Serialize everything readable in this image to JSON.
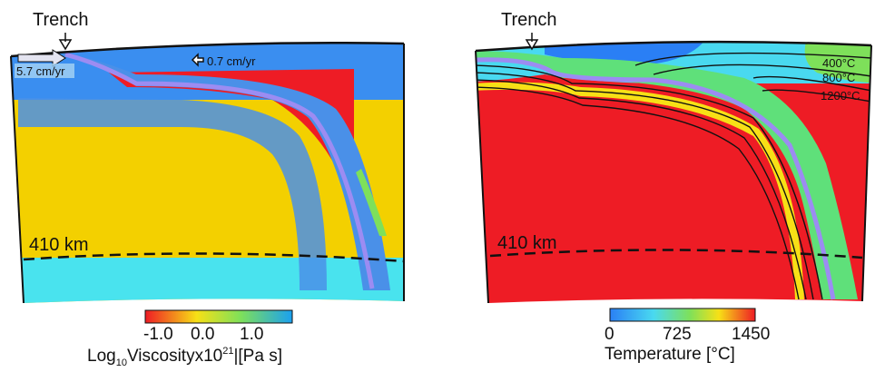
{
  "left_panel": {
    "trench_label": "Trench",
    "left_velocity": "5.7 cm/yr",
    "right_velocity": "0.7 cm/yr",
    "depth_label": "410 km",
    "colorbar": {
      "ticks": [
        "-1.0",
        "0.0",
        "1.0"
      ],
      "label_prefix": "Log",
      "label_sub": "10",
      "label_mid": "Viscosityx10",
      "label_sup": "21",
      "label_suffix": "|[Pa s]",
      "colors": [
        "#ee1c25",
        "#f7e016",
        "#7ee05a",
        "#1aa0f0"
      ]
    },
    "colors": {
      "upper_low_viscosity": "#3a8ef0",
      "lithosphere_wedge": "#ee1c25",
      "mantle_yellow": "#f3d000",
      "slab_blue": "#4a90e8",
      "lower_cyan": "#49e3ee",
      "slab_surface": "#9c8cf2"
    }
  },
  "right_panel": {
    "trench_label": "Trench",
    "depth_label": "410 km",
    "isotherms": [
      "400°C",
      "800°C",
      "1200°C"
    ],
    "colorbar": {
      "ticks": [
        "0",
        "725",
        "1450"
      ],
      "label": "Temperature [°C]",
      "colors": [
        "#2a7ff5",
        "#49d9f0",
        "#7ee05a",
        "#f7e016",
        "#ee1c25"
      ]
    },
    "colors": {
      "hot_mantle": "#ee1c25",
      "cold_slab": "#5fe07a",
      "slab_surface": "#9c8cf2"
    }
  }
}
